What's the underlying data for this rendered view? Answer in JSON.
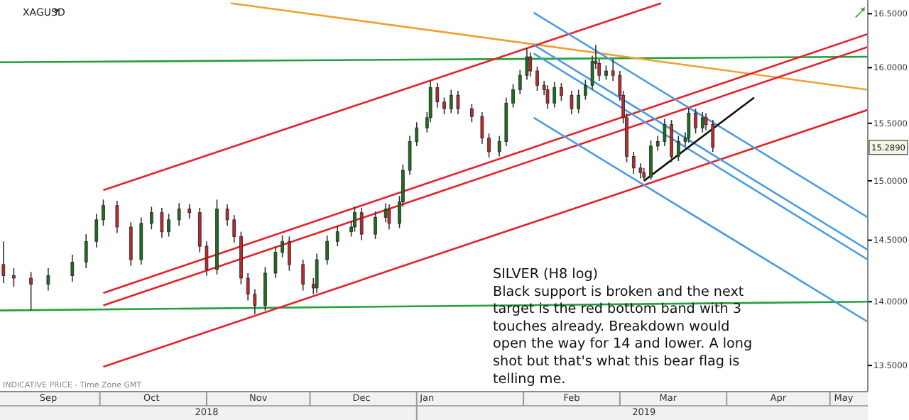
{
  "chart_data": {
    "type": "candlestick",
    "title": "XAGUSD",
    "log": true,
    "annotations": [
      "SILVER (H8 log)",
      "Black support is broken and the next target is the red bottom band with 3 touches already. Breakdown would open the way for 14 and lower. A long shot but that's what this bear flag is telling me.",
      "INDICATIVE PRICE - Time Zone GMT",
      {
        "text": "15.2890",
        "y": 15.289
      }
    ],
    "xlim": [
      "2018-09-02",
      "2019-05-12"
    ],
    "xticks": [
      {
        "value": "2018-09-16",
        "label": "Sep"
      },
      {
        "value": "2018-10-01",
        "label": null
      },
      {
        "value": "2018-10-16",
        "label": "Oct"
      },
      {
        "value": "2018-11-01",
        "label": null
      },
      {
        "value": "2018-11-16",
        "label": "Nov"
      },
      {
        "value": "2018-12-01",
        "label": null
      },
      {
        "value": "2018-12-16",
        "label": "Dec"
      },
      {
        "value": "2019-01-01",
        "label": null
      },
      {
        "value": "2019-01-04",
        "label": "Jan"
      },
      {
        "value": "2019-02-01",
        "label": null
      },
      {
        "value": "2019-02-15",
        "label": "Feb"
      },
      {
        "value": "2019-03-01",
        "label": null
      },
      {
        "value": "2019-03-15",
        "label": "Mar"
      },
      {
        "value": "2019-04-01",
        "label": null
      },
      {
        "value": "2019-04-16",
        "label": "Apr"
      },
      {
        "value": "2019-05-01",
        "label": null
      },
      {
        "value": "2019-05-05",
        "label": "May"
      }
    ],
    "x2lim": [
      "2018-09-02",
      "2019-05-12"
    ],
    "x2ticks": [
      {
        "value": "2018-11-01",
        "label": "2018"
      },
      {
        "value": "2019-01-01",
        "label": null
      },
      {
        "value": "2019-03-08",
        "label": "2019"
      }
    ],
    "ylim": [
      13.3,
      16.63
    ],
    "yticks": [
      {
        "value": 13.5,
        "label": "13.5000"
      },
      {
        "value": 14,
        "label": "14.0000"
      },
      {
        "value": 14.5,
        "label": "14.5000"
      },
      {
        "value": 15,
        "label": "15.0000"
      },
      {
        "value": 15.5,
        "label": "15.5000"
      },
      {
        "value": 16,
        "label": "16.0000"
      },
      {
        "value": 16.5,
        "label": "16.5000"
      }
    ],
    "x": [
      "2018-09-03",
      "2018-09-06",
      "2018-09-11",
      "2018-09-16",
      "2018-09-23",
      "2018-09-27",
      "2018-09-30",
      "2018-10-02",
      "2018-10-06",
      "2018-10-10",
      "2018-10-13",
      "2018-10-16",
      "2018-10-19",
      "2018-10-21",
      "2018-10-24",
      "2018-10-27",
      "2018-10-30",
      "2018-11-01",
      "2018-11-04",
      "2018-11-07",
      "2018-11-09",
      "2018-11-11",
      "2018-11-13",
      "2018-11-15",
      "2018-11-18",
      "2018-11-21",
      "2018-11-23",
      "2018-11-25",
      "2018-11-29",
      "2018-12-02",
      "2018-12-03",
      "2018-12-06",
      "2018-12-09",
      "2018-12-13",
      "2018-12-14",
      "2018-12-16",
      "2018-12-20",
      "2018-12-23",
      "2018-12-24",
      "2018-12-27",
      "2018-12-28",
      "2018-12-30",
      "2019-01-01",
      "2019-01-04",
      "2019-01-05",
      "2019-01-07",
      "2019-01-09",
      "2019-01-11",
      "2019-01-13",
      "2019-01-17",
      "2019-01-20",
      "2019-01-22",
      "2019-01-25",
      "2019-01-27",
      "2019-01-29",
      "2019-01-31",
      "2019-02-02",
      "2019-02-03",
      "2019-02-05",
      "2019-02-07",
      "2019-02-08",
      "2019-02-10",
      "2019-02-12",
      "2019-02-15",
      "2019-02-17",
      "2019-02-19",
      "2019-02-21",
      "2019-02-22",
      "2019-02-23",
      "2019-02-25",
      "2019-02-27",
      "2019-03-01",
      "2019-03-02",
      "2019-03-03",
      "2019-03-05",
      "2019-03-07",
      "2019-03-08",
      "2019-03-10",
      "2019-03-12",
      "2019-03-14",
      "2019-03-16",
      "2019-03-18",
      "2019-03-20",
      "2019-03-21",
      "2019-03-23",
      "2019-03-25",
      "2019-03-26",
      "2019-03-28"
    ],
    "ohlc": [
      [
        14.3,
        14.49,
        14.15,
        14.21
      ],
      [
        14.21,
        14.27,
        14.12,
        14.19
      ],
      [
        14.19,
        14.24,
        13.93,
        14.14
      ],
      [
        14.14,
        14.27,
        14.09,
        14.21
      ],
      [
        14.21,
        14.38,
        14.16,
        14.32
      ],
      [
        14.32,
        14.55,
        14.27,
        14.49
      ],
      [
        14.49,
        14.72,
        14.44,
        14.67
      ],
      [
        14.67,
        14.84,
        14.62,
        14.79
      ],
      [
        14.79,
        14.83,
        14.56,
        14.61
      ],
      [
        14.61,
        14.65,
        14.29,
        14.34
      ],
      [
        14.34,
        14.69,
        14.3,
        14.64
      ],
      [
        14.64,
        14.78,
        14.59,
        14.73
      ],
      [
        14.73,
        14.77,
        14.52,
        14.57
      ],
      [
        14.57,
        14.72,
        14.53,
        14.67
      ],
      [
        14.67,
        14.81,
        14.62,
        14.76
      ],
      [
        14.76,
        14.8,
        14.68,
        14.73
      ],
      [
        14.73,
        14.77,
        14.4,
        14.45
      ],
      [
        14.45,
        14.49,
        14.21,
        14.26
      ],
      [
        14.26,
        14.84,
        14.22,
        14.76
      ],
      [
        14.76,
        14.8,
        14.62,
        14.67
      ],
      [
        14.67,
        14.71,
        14.48,
        14.53
      ],
      [
        14.53,
        14.57,
        14.14,
        14.19
      ],
      [
        14.19,
        14.23,
        14.01,
        14.06
      ],
      [
        14.06,
        14.1,
        13.9,
        13.97
      ],
      [
        13.97,
        14.28,
        13.93,
        14.23
      ],
      [
        14.23,
        14.45,
        14.19,
        14.4
      ],
      [
        14.4,
        14.54,
        14.36,
        14.49
      ],
      [
        14.49,
        14.53,
        14.25,
        14.3
      ],
      [
        14.3,
        14.34,
        14.09,
        14.14
      ],
      [
        14.14,
        14.19,
        14.06,
        14.11
      ],
      [
        14.11,
        14.39,
        14.07,
        14.34
      ],
      [
        14.34,
        14.54,
        14.3,
        14.49
      ],
      [
        14.49,
        14.62,
        14.45,
        14.57
      ],
      [
        14.57,
        14.66,
        14.53,
        14.61
      ],
      [
        14.61,
        14.78,
        14.57,
        14.73
      ],
      [
        14.73,
        14.77,
        14.5,
        14.55
      ],
      [
        14.55,
        14.74,
        14.51,
        14.69
      ],
      [
        14.69,
        14.81,
        14.65,
        14.76
      ],
      [
        14.76,
        14.8,
        14.59,
        14.64
      ],
      [
        14.64,
        14.87,
        14.6,
        14.82
      ],
      [
        14.82,
        15.14,
        14.78,
        15.09
      ],
      [
        15.09,
        15.39,
        15.05,
        15.34
      ],
      [
        15.34,
        15.51,
        15.3,
        15.46
      ],
      [
        15.46,
        15.6,
        15.42,
        15.55
      ],
      [
        15.55,
        15.88,
        15.51,
        15.82
      ],
      [
        15.82,
        15.86,
        15.64,
        15.69
      ],
      [
        15.69,
        15.73,
        15.58,
        15.63
      ],
      [
        15.63,
        15.8,
        15.59,
        15.75
      ],
      [
        15.75,
        15.79,
        15.58,
        15.63
      ],
      [
        15.63,
        15.67,
        15.51,
        15.56
      ],
      [
        15.56,
        15.6,
        15.32,
        15.37
      ],
      [
        15.37,
        15.41,
        15.2,
        15.25
      ],
      [
        15.25,
        15.39,
        15.21,
        15.34
      ],
      [
        15.34,
        15.73,
        15.3,
        15.68
      ],
      [
        15.68,
        15.85,
        15.64,
        15.8
      ],
      [
        15.8,
        15.98,
        15.76,
        15.93
      ],
      [
        15.93,
        16.18,
        15.89,
        16.1
      ],
      [
        16.1,
        16.14,
        15.92,
        15.97
      ],
      [
        15.97,
        16.01,
        15.79,
        15.84
      ],
      [
        15.84,
        15.88,
        15.75,
        15.8
      ],
      [
        15.8,
        15.84,
        15.63,
        15.68
      ],
      [
        15.68,
        15.87,
        15.64,
        15.82
      ],
      [
        15.82,
        15.86,
        15.7,
        15.75
      ],
      [
        15.75,
        15.79,
        15.58,
        15.63
      ],
      [
        15.63,
        15.8,
        15.59,
        15.75
      ],
      [
        15.75,
        15.89,
        15.71,
        15.84
      ],
      [
        15.84,
        16.11,
        15.8,
        16.06
      ],
      [
        16.06,
        16.21,
        15.99,
        16.04
      ],
      [
        16.04,
        16.08,
        15.88,
        15.93
      ],
      [
        15.93,
        16.02,
        15.89,
        15.97
      ],
      [
        15.97,
        16.08,
        15.88,
        15.93
      ],
      [
        15.93,
        15.97,
        15.7,
        15.75
      ],
      [
        15.75,
        15.79,
        15.5,
        15.55
      ],
      [
        15.55,
        15.59,
        15.16,
        15.21
      ],
      [
        15.21,
        15.25,
        15.06,
        15.11
      ],
      [
        15.11,
        15.15,
        15.02,
        15.07
      ],
      [
        15.07,
        15.11,
        15.0,
        15.03
      ],
      [
        15.03,
        15.35,
        15.01,
        15.3
      ],
      [
        15.3,
        15.39,
        15.26,
        15.34
      ],
      [
        15.34,
        15.54,
        15.3,
        15.49
      ],
      [
        15.49,
        15.53,
        15.16,
        15.21
      ],
      [
        15.21,
        15.39,
        15.17,
        15.34
      ],
      [
        15.34,
        15.42,
        15.3,
        15.37
      ],
      [
        15.37,
        15.64,
        15.33,
        15.59
      ],
      [
        15.59,
        15.63,
        15.41,
        15.46
      ],
      [
        15.46,
        15.6,
        15.42,
        15.55
      ],
      [
        15.55,
        15.59,
        15.44,
        15.49
      ],
      [
        15.49,
        15.53,
        15.25,
        15.289
      ]
    ],
    "series": [
      {
        "type": "line",
        "color": "#22a03c",
        "x": [
          "2018-09-02",
          "2019-05-12"
        ],
        "values": [
          16.05,
          16.1
        ]
      },
      {
        "type": "line",
        "color": "#22a03c",
        "x": [
          "2018-09-02",
          "2019-05-12"
        ],
        "values": [
          13.93,
          14.0
        ]
      },
      {
        "type": "line",
        "color": "#f0a030",
        "x": [
          "2018-11-08",
          "2019-05-12"
        ],
        "values": [
          16.6,
          15.8
        ]
      },
      {
        "type": "line",
        "color": "#e8202a",
        "x": [
          "2018-10-02",
          "2019-03-13"
        ],
        "values": [
          14.92,
          16.6
        ]
      },
      {
        "type": "line",
        "color": "#e8202a",
        "x": [
          "2018-10-02",
          "2019-05-12"
        ],
        "values": [
          14.07,
          16.31
        ]
      },
      {
        "type": "line",
        "color": "#e8202a",
        "x": [
          "2018-10-02",
          "2019-05-12"
        ],
        "values": [
          13.97,
          16.19
        ]
      },
      {
        "type": "line",
        "color": "#e8202a",
        "x": [
          "2018-10-02",
          "2019-05-12"
        ],
        "values": [
          13.49,
          15.62
        ]
      },
      {
        "type": "line",
        "color": "#4a9ce0",
        "x": [
          "2019-02-04",
          "2019-05-12"
        ],
        "values": [
          16.51,
          14.69
        ]
      },
      {
        "type": "line",
        "color": "#4a9ce0",
        "x": [
          "2019-02-04",
          "2019-05-12"
        ],
        "values": [
          16.21,
          14.42
        ]
      },
      {
        "type": "line",
        "color": "#4a9ce0",
        "x": [
          "2019-02-04",
          "2019-05-12"
        ],
        "values": [
          16.13,
          14.34
        ]
      },
      {
        "type": "line",
        "color": "#4a9ce0",
        "x": [
          "2019-02-04",
          "2019-05-12"
        ],
        "values": [
          15.55,
          13.84
        ]
      },
      {
        "type": "line",
        "color": "#111111",
        "x": [
          "2019-03-08",
          "2019-04-09"
        ],
        "values": [
          15.0,
          15.73
        ]
      }
    ],
    "line_style": "solid"
  }
}
